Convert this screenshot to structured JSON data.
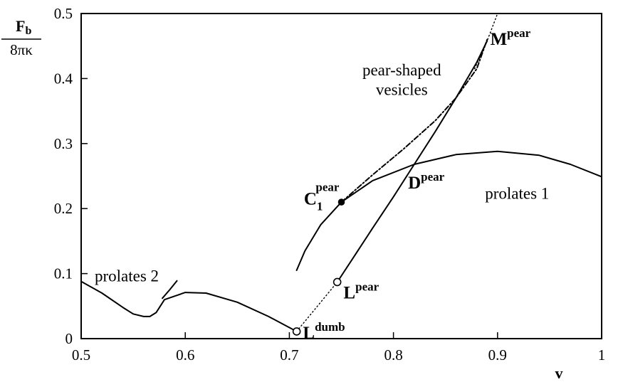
{
  "chart_data": {
    "type": "line",
    "xlabel": "v",
    "ylabel_num": "F",
    "ylabel_num_sub": "b",
    "ylabel_den": "8πκ",
    "xlim": [
      0.5,
      1.0
    ],
    "ylim": [
      0,
      0.5
    ],
    "x_ticks": [
      {
        "v": 0.5,
        "label": "0.5"
      },
      {
        "v": 0.6,
        "label": "0.6"
      },
      {
        "v": 0.7,
        "label": "0.7"
      },
      {
        "v": 0.8,
        "label": "0.8"
      },
      {
        "v": 0.9,
        "label": "0.9"
      },
      {
        "v": 1.0,
        "label": "1"
      }
    ],
    "y_ticks": [
      {
        "v": 0,
        "label": "0"
      },
      {
        "v": 0.1,
        "label": "0.1"
      },
      {
        "v": 0.2,
        "label": "0.2"
      },
      {
        "v": 0.3,
        "label": "0.3"
      },
      {
        "v": 0.4,
        "label": "0.4"
      },
      {
        "v": 0.5,
        "label": "0.5"
      }
    ],
    "grid": false,
    "series": [
      {
        "key": "prolates1",
        "style": "solid",
        "points": [
          [
            0.707,
            0.105
          ],
          [
            0.715,
            0.135
          ],
          [
            0.73,
            0.175
          ],
          [
            0.75,
            0.21
          ],
          [
            0.78,
            0.243
          ],
          [
            0.82,
            0.268
          ],
          [
            0.86,
            0.283
          ],
          [
            0.9,
            0.288
          ],
          [
            0.94,
            0.282
          ],
          [
            0.97,
            0.268
          ],
          [
            1.0,
            0.249
          ]
        ]
      },
      {
        "key": "prolates2",
        "style": "solid",
        "points": [
          [
            0.5,
            0.088
          ],
          [
            0.52,
            0.07
          ],
          [
            0.54,
            0.048
          ],
          [
            0.55,
            0.038
          ],
          [
            0.56,
            0.034
          ],
          [
            0.566,
            0.034
          ],
          [
            0.572,
            0.04
          ],
          [
            0.58,
            0.06
          ],
          [
            0.6,
            0.071
          ],
          [
            0.62,
            0.07
          ],
          [
            0.65,
            0.056
          ],
          [
            0.68,
            0.034
          ],
          [
            0.707,
            0.011
          ]
        ]
      },
      {
        "key": "prolates2_tail",
        "style": "solid",
        "points": [
          [
            0.578,
            0.062
          ],
          [
            0.585,
            0.075
          ],
          [
            0.592,
            0.089
          ]
        ]
      },
      {
        "key": "lower_branch",
        "style": "solid",
        "points": [
          [
            0.746,
            0.087
          ],
          [
            0.76,
            0.121
          ],
          [
            0.78,
            0.17
          ],
          [
            0.8,
            0.218
          ],
          [
            0.82,
            0.268
          ],
          [
            0.84,
            0.318
          ],
          [
            0.86,
            0.37
          ],
          [
            0.88,
            0.425
          ],
          [
            0.89,
            0.458
          ]
        ]
      },
      {
        "key": "lower_branch_extension",
        "style": "dotted",
        "points": [
          [
            0.707,
            0.011
          ],
          [
            0.746,
            0.087
          ]
        ]
      },
      {
        "key": "pear_shaped_vesicles",
        "style": "dashdot",
        "points": [
          [
            0.75,
            0.21
          ],
          [
            0.78,
            0.252
          ],
          [
            0.81,
            0.292
          ],
          [
            0.84,
            0.335
          ],
          [
            0.86,
            0.37
          ],
          [
            0.88,
            0.415
          ],
          [
            0.89,
            0.46
          ]
        ]
      },
      {
        "key": "pear_steep_dotted",
        "style": "dotted",
        "points": [
          [
            0.878,
            0.415
          ],
          [
            0.89,
            0.458
          ],
          [
            0.9,
            0.5
          ]
        ]
      }
    ],
    "markers": [
      {
        "key": "C1_pear",
        "x": 0.75,
        "y": 0.21,
        "filled": true
      },
      {
        "key": "L_dumb",
        "x": 0.707,
        "y": 0.011,
        "filled": false
      },
      {
        "key": "L_pear",
        "x": 0.746,
        "y": 0.087,
        "filled": false
      }
    ],
    "annotations": [
      {
        "key": "pear_label_1",
        "text": "pear-shaped",
        "x": 0.808,
        "y": 0.405,
        "cls": "ann",
        "anchor": "middle"
      },
      {
        "key": "pear_label_2",
        "text": "vesicles",
        "x": 0.808,
        "y": 0.375,
        "cls": "ann",
        "anchor": "middle"
      },
      {
        "key": "prolates1_label",
        "text": "prolates 1",
        "x": 0.888,
        "y": 0.215,
        "cls": "ann",
        "anchor": "start"
      },
      {
        "key": "prolates2_label",
        "text": "prolates 2",
        "x": 0.513,
        "y": 0.088,
        "cls": "ann",
        "anchor": "start"
      },
      {
        "key": "M_pear",
        "text": "M",
        "sup": "pear",
        "x": 0.893,
        "y": 0.452,
        "cls": "ann-bold",
        "anchor": "start"
      },
      {
        "key": "C1_pear",
        "text": "C",
        "sub": "1",
        "sup": "pear",
        "x": 0.714,
        "y": 0.206,
        "cls": "ann-bold",
        "anchor": "start"
      },
      {
        "key": "D_pear",
        "text": "D",
        "sup": "pear",
        "x": 0.814,
        "y": 0.231,
        "cls": "ann-bold",
        "anchor": "start"
      },
      {
        "key": "L_pear",
        "text": "L",
        "sup": "pear",
        "x": 0.752,
        "y": 0.062,
        "cls": "ann-bold",
        "anchor": "start"
      },
      {
        "key": "L_dumb",
        "text": "L",
        "sup": "dumb",
        "x": 0.713,
        "y": 0.0,
        "cls": "ann-bold",
        "anchor": "start"
      }
    ]
  }
}
